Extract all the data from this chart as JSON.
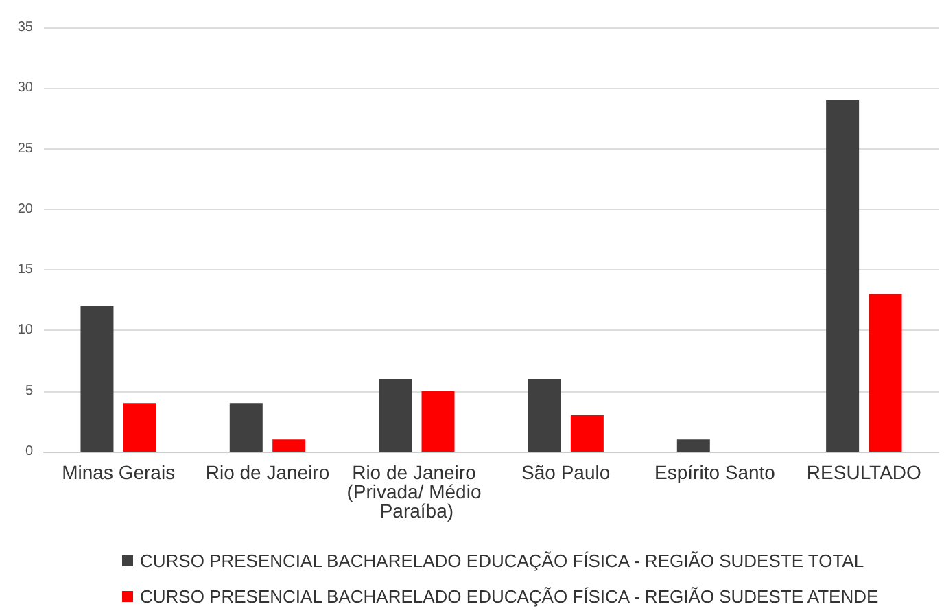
{
  "chart_data": {
    "type": "bar",
    "categories": [
      "Minas Gerais",
      "Rio de Janeiro",
      "Rio de Janeiro (Privada/ Médio Paraíba)",
      "São Paulo",
      "Espírito Santo",
      "RESULTADO"
    ],
    "series": [
      {
        "name": "CURSO PRESENCIAL BACHARELADO EDUCAÇÃO FÍSICA - REGIÃO SUDESTE TOTAL",
        "color": "#404040",
        "values": [
          12,
          4,
          6,
          6,
          1,
          29
        ]
      },
      {
        "name": "CURSO PRESENCIAL BACHARELADO EDUCAÇÃO FÍSICA - REGIÃO SUDESTE ATENDE",
        "color": "#ff0000",
        "values": [
          4,
          1,
          5,
          3,
          0,
          13
        ]
      }
    ],
    "ylim": [
      0,
      35
    ],
    "yticks": [
      0,
      5,
      10,
      15,
      20,
      25,
      30,
      35
    ],
    "grid": "y",
    "legend": "bottom"
  }
}
